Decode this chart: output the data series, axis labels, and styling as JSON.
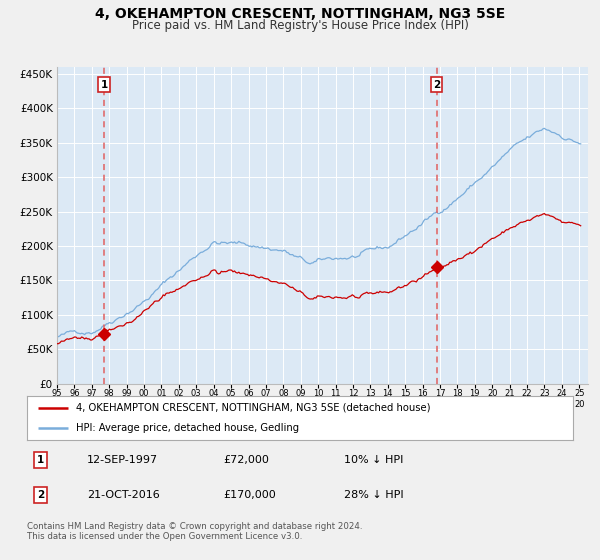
{
  "title": "4, OKEHAMPTON CRESCENT, NOTTINGHAM, NG3 5SE",
  "subtitle": "Price paid vs. HM Land Registry's House Price Index (HPI)",
  "legend_line1": "4, OKEHAMPTON CRESCENT, NOTTINGHAM, NG3 5SE (detached house)",
  "legend_line2": "HPI: Average price, detached house, Gedling",
  "annotation1_date": "12-SEP-1997",
  "annotation1_price": "£72,000",
  "annotation1_hpi": "10% ↓ HPI",
  "annotation2_date": "21-OCT-2016",
  "annotation2_price": "£170,000",
  "annotation2_hpi": "28% ↓ HPI",
  "footnote": "Contains HM Land Registry data © Crown copyright and database right 2024.\nThis data is licensed under the Open Government Licence v3.0.",
  "hpi_color": "#7aaddb",
  "price_color": "#cc0000",
  "bg_color": "#dce9f5",
  "fig_color": "#f0f0f0",
  "grid_color": "#ffffff",
  "dashed_color": "#e06060",
  "marker_box_edge": "#cc2222",
  "ylim": [
    0,
    460000
  ],
  "yticks": [
    0,
    50000,
    100000,
    150000,
    200000,
    250000,
    300000,
    350000,
    400000,
    450000
  ],
  "sale1_year": 1997.72,
  "sale1_price": 72000,
  "sale2_year": 2016.8,
  "sale2_price": 170000,
  "xstart": 1995,
  "xend": 2025.5
}
